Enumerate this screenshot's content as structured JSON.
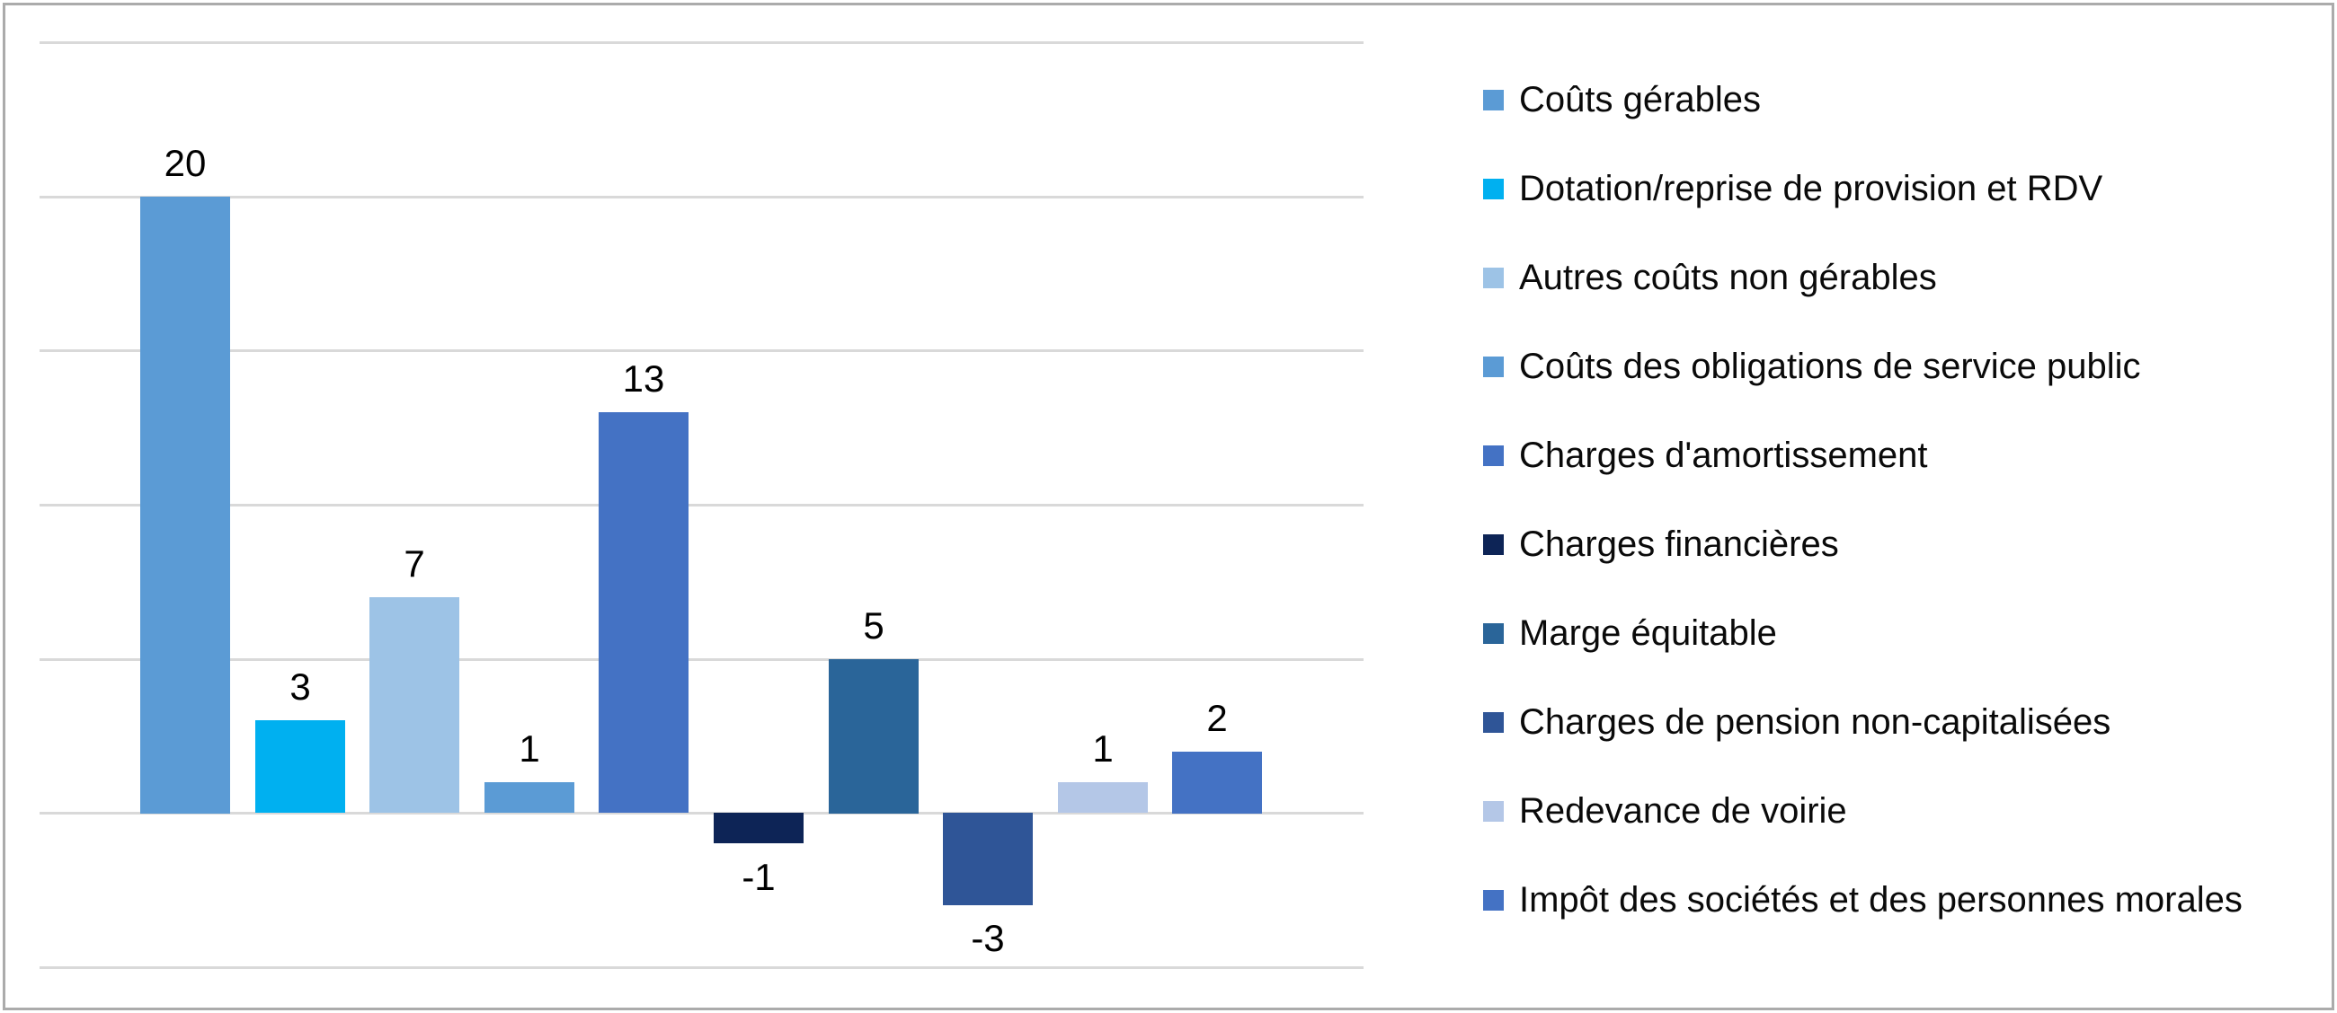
{
  "chart_data": {
    "type": "bar",
    "title": "",
    "xlabel": "",
    "ylabel": "",
    "ylim": [
      -5,
      25
    ],
    "gridlines": [
      25,
      20,
      15,
      10,
      5,
      0,
      -5
    ],
    "grid": true,
    "axis_tick_labels_visible": false,
    "legend_position": "right",
    "value_labels_visible": true,
    "background_color": "#FFFFFF",
    "frame_border_color": "#ABABAB",
    "gridline_color": "#D9D9D9",
    "value_label_color": "#000000",
    "categories": [
      "Coûts gérables",
      "Dotation/reprise de provision et RDV",
      "Autres coûts non gérables",
      "Coûts des obligations de service public",
      "Charges d'amortissement",
      "Charges financières",
      "Marge équitable",
      "Charges de pension non-capitalisées",
      "Redevance de voirie",
      "Impôt des sociétés et des personnes morales"
    ],
    "values": [
      20,
      3,
      7,
      1,
      13,
      -1,
      5,
      -3,
      1,
      2
    ],
    "value_labels": [
      "20",
      "3",
      "7",
      "1",
      "13",
      "-1",
      "5",
      "-3",
      "1",
      "2"
    ],
    "colors": [
      "#5B9BD5",
      "#00B0F0",
      "#9DC3E6",
      "#5B9BD5",
      "#4472C4",
      "#0D2456",
      "#2A6599",
      "#2F5597",
      "#B4C7E7",
      "#4472C4"
    ],
    "legend": [
      {
        "label": "Coûts gérables",
        "color": "#5B9BD5"
      },
      {
        "label": "Dotation/reprise de provision et RDV",
        "color": "#00B0F0"
      },
      {
        "label": "Autres coûts non gérables",
        "color": "#9DC3E6"
      },
      {
        "label": "Coûts des obligations de service public",
        "color": "#5B9BD5"
      },
      {
        "label": "Charges d'amortissement",
        "color": "#4472C4"
      },
      {
        "label": "Charges financières",
        "color": "#0D2456"
      },
      {
        "label": "Marge équitable",
        "color": "#2A6599"
      },
      {
        "label": "Charges de pension non-capitalisées",
        "color": "#2F5597"
      },
      {
        "label": "Redevance de voirie",
        "color": "#B4C7E7"
      },
      {
        "label": "Impôt des sociétés et des personnes morales",
        "color": "#4472C4"
      }
    ]
  }
}
